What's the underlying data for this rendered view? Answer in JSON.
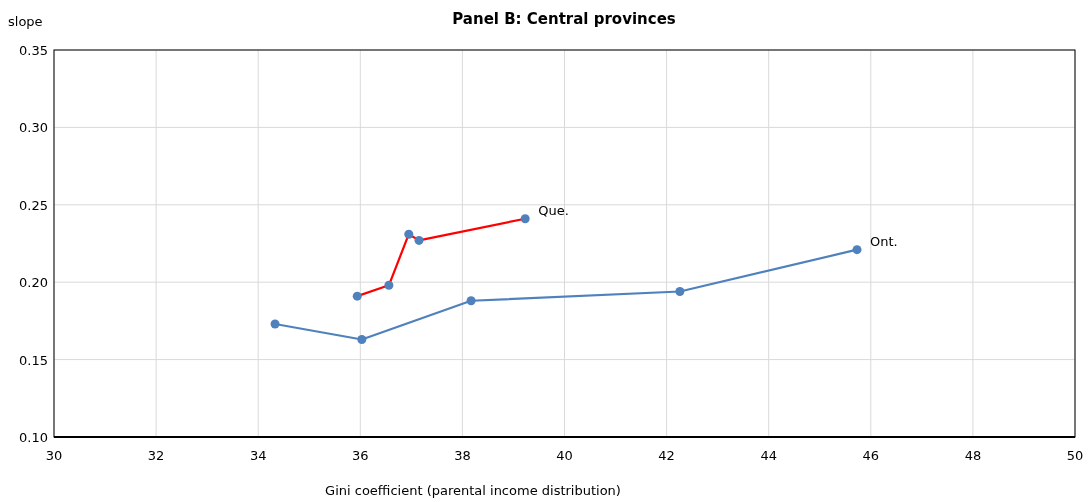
{
  "chart_data": {
    "type": "line",
    "title": "Panel B: Central provinces",
    "xlabel": "Gini coefficient (parental income distribution)",
    "ylabel": "slope",
    "xlim": [
      30,
      50
    ],
    "xticks": [
      30,
      32,
      34,
      36,
      38,
      40,
      42,
      44,
      46,
      48,
      50
    ],
    "ylim": [
      0.1,
      0.35
    ],
    "yticks": [
      {
        "value": 0.1,
        "label": "0.10"
      },
      {
        "value": 0.15,
        "label": "0.15"
      },
      {
        "value": 0.2,
        "label": "0.20"
      },
      {
        "value": 0.25,
        "label": "0.25"
      },
      {
        "value": 0.3,
        "label": "0.30"
      },
      {
        "value": 0.35,
        "label": "0.35"
      }
    ],
    "grid": true,
    "marker": "circle",
    "line_style": "solid",
    "series": [
      {
        "name": "Que.",
        "color": "#ff0000",
        "x": [
          35.94,
          36.56,
          36.95,
          37.15,
          39.23
        ],
        "values": [
          0.191,
          0.198,
          0.231,
          0.227,
          0.241
        ]
      },
      {
        "name": "Ont.",
        "color": "#4f81bd",
        "x": [
          34.33,
          36.03,
          38.17,
          42.26,
          45.73
        ],
        "values": [
          0.173,
          0.163,
          0.188,
          0.194,
          0.221
        ]
      }
    ]
  }
}
